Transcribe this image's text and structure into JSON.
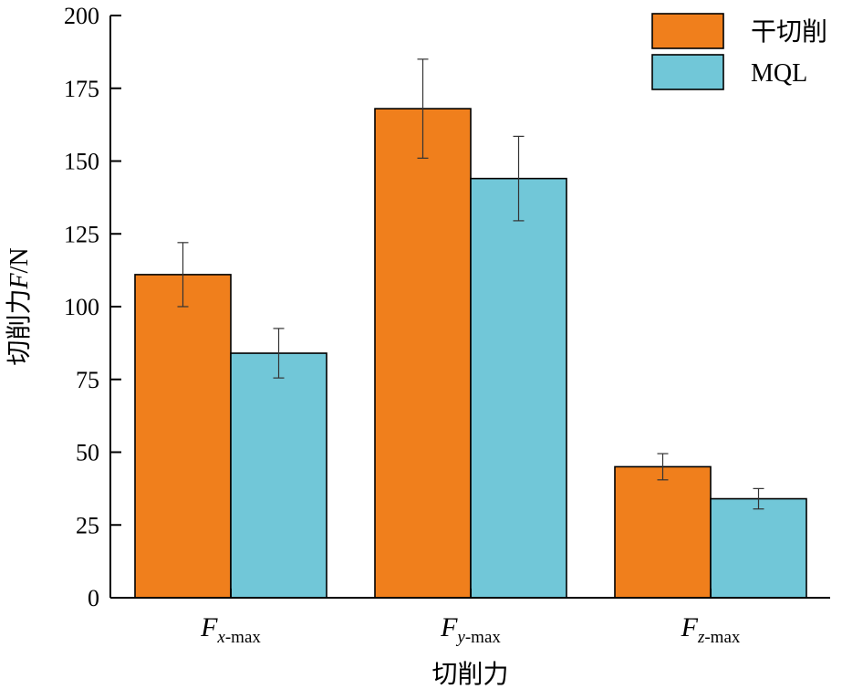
{
  "chart_data": {
    "type": "bar",
    "categories": [
      {
        "main": "F",
        "sub_var": "x",
        "sub_rest": "-max"
      },
      {
        "main": "F",
        "sub_var": "y",
        "sub_rest": "-max"
      },
      {
        "main": "F",
        "sub_var": "z",
        "sub_rest": "-max"
      }
    ],
    "series": [
      {
        "name": "干切削",
        "color": "#f07f1c",
        "values": [
          111,
          168,
          45
        ],
        "errors": [
          11,
          17,
          4.5
        ]
      },
      {
        "name": "MQL",
        "color": "#71c7d8",
        "values": [
          84,
          144,
          34
        ],
        "errors": [
          8.5,
          14.5,
          3.5
        ]
      }
    ],
    "xlabel": "切削力",
    "ylabel": {
      "prefix": "切削力",
      "var": "F",
      "unit": "/N"
    },
    "ylim": [
      0,
      200
    ],
    "yticks": [
      0,
      25,
      50,
      75,
      100,
      125,
      150,
      175,
      200
    ],
    "legend_position": "top-right",
    "grid": false
  }
}
